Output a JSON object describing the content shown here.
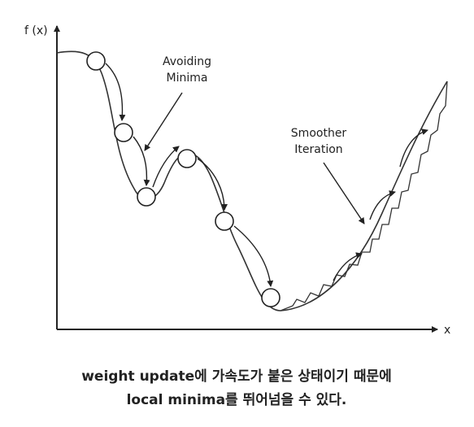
{
  "axes": {
    "y_label": "f (x)",
    "x_label": "x"
  },
  "annotations": {
    "avoiding": [
      "Avoiding",
      "Minima"
    ],
    "smoother": [
      "Smoother",
      "Iteration"
    ]
  },
  "caption": [
    "weight update에 가속도가 붙은 상태이기 때문에",
    "local minima를 뛰어넘을 수 있다."
  ]
}
